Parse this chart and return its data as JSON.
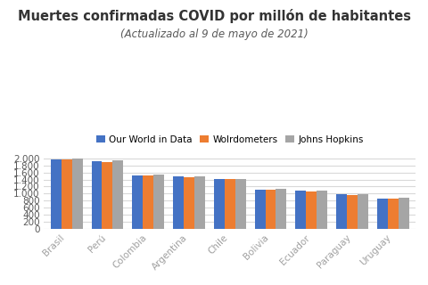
{
  "title": "Muertes confirmadas COVID por millón de habitantes",
  "subtitle": "(Actualizado al 9 de mayo de 2021)",
  "categories": [
    "Brasil",
    "Perú",
    "Colombia",
    "Argentina",
    "Chile",
    "Bolivia",
    "Ecuador",
    "Paraguay",
    "Uruguay"
  ],
  "series": {
    "Our World in Data": [
      1970,
      1930,
      1520,
      1480,
      1410,
      1120,
      1075,
      980,
      865
    ],
    "Wolrdometers": [
      1960,
      1900,
      1505,
      1465,
      1405,
      1105,
      1050,
      970,
      865
    ],
    "Johns Hopkins": [
      1985,
      1955,
      1530,
      1480,
      1415,
      1145,
      1080,
      995,
      870
    ]
  },
  "colors": {
    "Our World in Data": "#4472C4",
    "Wolrdometers": "#ED7D31",
    "Johns Hopkins": "#A5A5A5"
  },
  "ylim": [
    0,
    2100
  ],
  "yticks": [
    0,
    200,
    400,
    600,
    800,
    1000,
    1200,
    1400,
    1600,
    1800,
    2000
  ],
  "background_color": "#FFFFFF",
  "title_fontsize": 10.5,
  "subtitle_fontsize": 8.5,
  "legend_fontsize": 7.5,
  "tick_fontsize": 7.5,
  "bar_width": 0.26,
  "title_color": "#333333",
  "subtitle_color": "#595959",
  "xtick_color": "#A0A0A0",
  "ytick_color": "#595959",
  "grid_color": "#D9D9D9"
}
